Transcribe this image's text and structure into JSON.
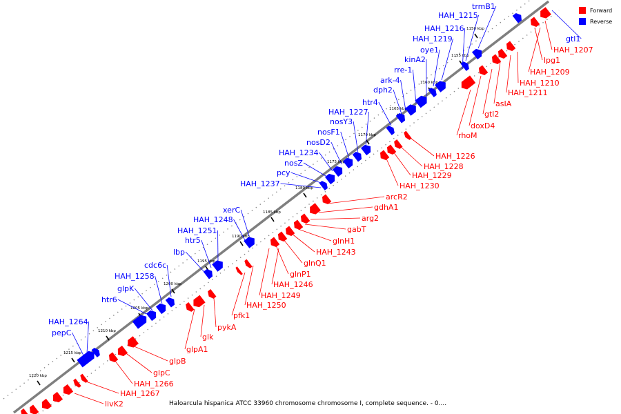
{
  "caption": "Haloarcula hispanica ATCC 33960 chromosome chromosome I, complete sequence. - 0....",
  "legend": [
    {
      "label": "Forward",
      "color": "#ff0000"
    },
    {
      "label": "Reverse",
      "color": "#0000ff"
    }
  ],
  "colors": {
    "forward": "#ff0000",
    "reverse": "#0000ff",
    "backbone": "#7f7f7f"
  },
  "ticks": [
    "1150 kbp",
    "1155 kbp",
    "1160 kbp",
    "1165 kbp",
    "1170 kbp",
    "1175 kbp",
    "1180 kbp",
    "1185 kbp",
    "1190 kbp",
    "1195 kbp",
    "1200 kbp",
    "1205 kbp",
    "1210 kbp",
    "1215 kbp",
    "1220 kbp"
  ],
  "reverse_genes": [
    "trmB1",
    "HAH_1215",
    "HAH_1216",
    "HAH_1219",
    "oye1",
    "kinA2",
    "rre-1",
    "ark-4",
    "dph2",
    "htr4",
    "HAH_1227",
    "nosY3",
    "nosF1",
    "nosD2",
    "HAH_1234",
    "nosZ",
    "pcy",
    "HAH_1237",
    "xerC",
    "HAH_1248",
    "HAH_1251",
    "htr5",
    "lbp",
    "cdc6c",
    "HAH_1258",
    "glpK",
    "htr6",
    "HAH_1264",
    "pepC",
    "gtl1"
  ],
  "forward_genes": [
    "HAH_1207",
    "lpg1",
    "HAH_1209",
    "HAH_1210",
    "HAH_1211",
    "asIA",
    "gtl2",
    "doxD4",
    "rhoM",
    "HAH_1226",
    "HAH_1228",
    "HAH_1229",
    "HAH_1230",
    "arcR2",
    "gdhA1",
    "arg2",
    "gabT",
    "glnH1",
    "HAH_1243",
    "glnQ1",
    "glnP1",
    "HAH_1246",
    "HAH_1249",
    "HAH_1250",
    "pfk1",
    "pykA",
    "glk",
    "glpA1",
    "glpB",
    "glpC",
    "HAH_1266",
    "HAH_1267",
    "livK2"
  ]
}
